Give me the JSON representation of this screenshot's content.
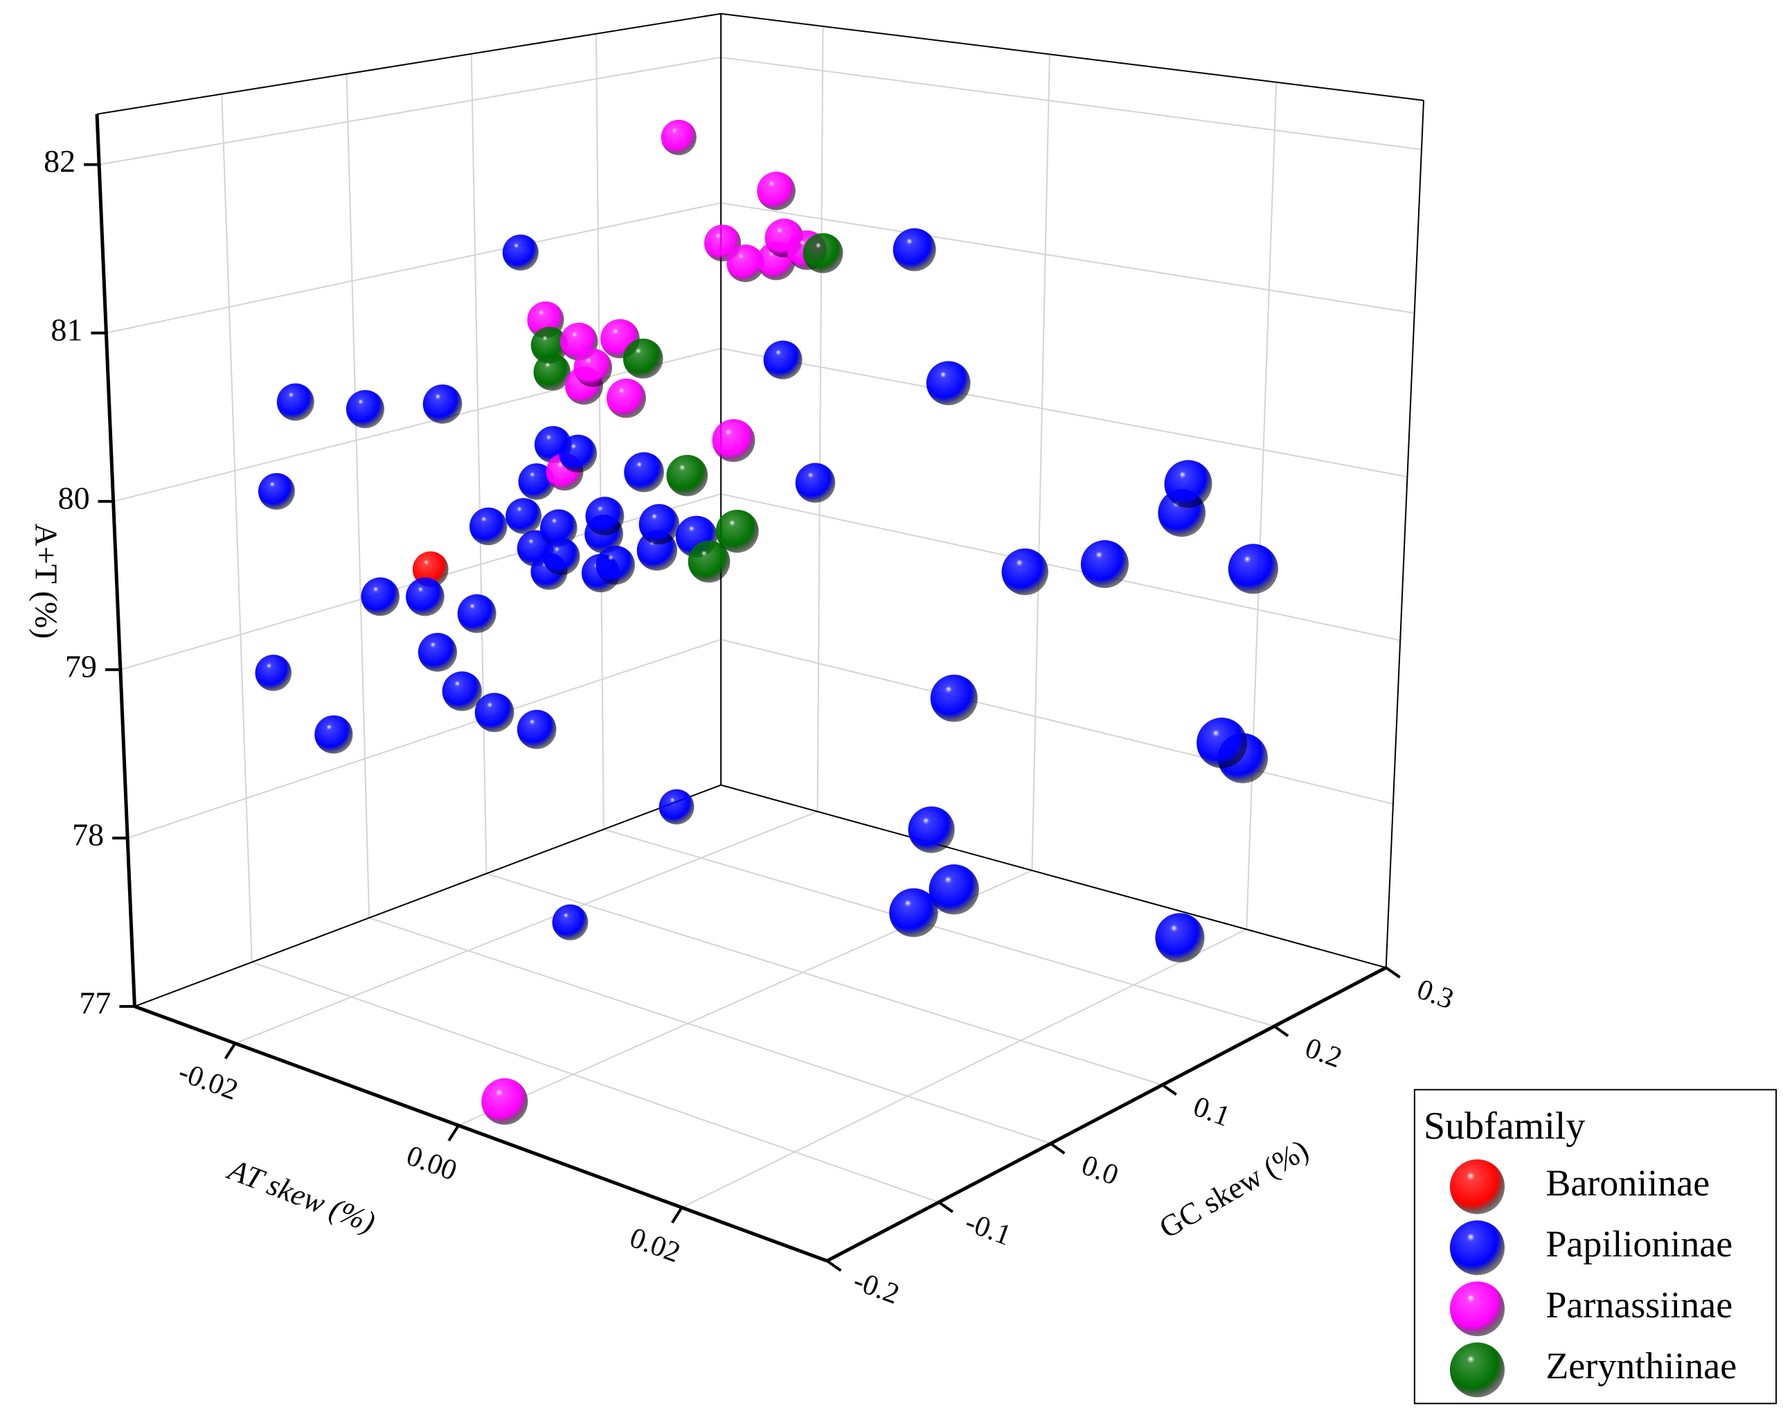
{
  "chart_data": {
    "type": "scatter3d",
    "xlabel": "AT skew (%)",
    "ylabel": "GC skew (%)",
    "zlabel": "A+T (%)",
    "xlim": [
      -0.029,
      0.033
    ],
    "ylim": [
      -0.2,
      0.3
    ],
    "zlim": [
      77,
      82.3
    ],
    "xticks": [
      {
        "value": -0.02,
        "label": "-0.02"
      },
      {
        "value": 0,
        "label": "0.00"
      },
      {
        "value": 0.02,
        "label": "0.02"
      }
    ],
    "yticks": [
      -0.2,
      -0.1,
      {
        "value": 0,
        "label": "0.0"
      },
      0.1,
      0.2,
      0.3
    ],
    "zticks": [
      77,
      78,
      79,
      80,
      81,
      82
    ],
    "grid": true,
    "legend_title": "Subfamily",
    "legend_position": "lower right",
    "series": [
      {
        "name": "Baroniinae",
        "color": "#ff0000",
        "x": [
          -0.0173
        ],
        "y": [
          -0.05
        ],
        "z": [
          79.51
        ]
      },
      {
        "name": "Papilioninae",
        "color": "#0000ff",
        "x": [
          -0.0142,
          0.0096,
          -0.0019,
          0.0127,
          -0.0181,
          -0.0147,
          -0.0106,
          -0.0116,
          -0.0094,
          -0.0131,
          -0.0036,
          0.001,
          -0.02,
          -0.0143,
          -0.0112,
          -0.0121,
          -0.0133,
          -0.0071,
          -0.0072,
          -0.0023,
          0.001,
          -0.0121,
          -0.011,
          -0.0075,
          -0.0062,
          -0.0025,
          0.0263,
          0.0258,
          0.0197,
          0.0242,
          0.0323,
          -0.0138,
          -0.0125,
          -0.0106,
          -0.0115,
          -0.0208,
          -0.0094,
          -0.0092,
          -0.0081,
          -0.0156,
          0.0187,
          -0.0115,
          0.0325,
          0.0324,
          0.0168,
          -0.0133,
          0.024,
          0.0204,
          0.0292
        ],
        "y": [
          0,
          0.1,
          0.1,
          0.1,
          -0.15,
          -0.125,
          -0.1,
          0,
          0,
          0,
          0,
          0.1,
          -0.15,
          0,
          0,
          -0.05,
          0,
          0,
          0,
          0,
          0,
          0,
          0,
          0,
          0,
          0,
          0.175,
          0.175,
          0.1,
          0.125,
          0.175,
          -0.125,
          -0.1,
          -0.075,
          -0.1,
          -0.15,
          -0.1,
          -0.075,
          -0.05,
          -0.15,
          0.05,
          0.1,
          0.15,
          0.17,
          0.05,
          0.025,
          0,
          0,
          0.15
        ],
        "z": [
          81.39,
          81.54,
          80.72,
          80.78,
          80.69,
          80.66,
          80.71,
          80.26,
          80.24,
          80.01,
          80.22,
          80.01,
          80.13,
          79.78,
          79.76,
          79.86,
          79.6,
          79.9,
          79.79,
          79.93,
          79.91,
          79.48,
          79.59,
          79.55,
          79.62,
          79.77,
          80.19,
          80.01,
          79.76,
          79.81,
          79.77,
          79.57,
          79.54,
          79.42,
          79.23,
          79.04,
          79.04,
          78.86,
          78.72,
          78.78,
          79.13,
          77.79,
          78.82,
          78.67,
          78.33,
          77.25,
          78.26,
          78.06,
          77.62
        ]
      },
      {
        "name": "Parnassiinae",
        "color": "#ff00ff",
        "x": [
          -0.011,
          -0.0025,
          -0.0072,
          -0.0018,
          -0.0052,
          -0.0025,
          0.0002,
          -0.0121,
          -0.0092,
          -0.0056,
          -0.008,
          -0.0088,
          -0.0051,
          0.0043,
          -0.0106,
          0.0042
        ],
        "y": [
          0.1,
          0.1,
          0.1,
          0.1,
          0.1,
          0.1,
          0.1,
          0,
          0,
          0,
          0,
          0,
          0,
          0,
          0,
          -0.2
        ],
        "z": [
          81.98,
          81.75,
          81.37,
          81.47,
          81.27,
          81.32,
          81.42,
          81.01,
          80.92,
          80.99,
          80.78,
          80.66,
          80.64,
          80.53,
          80.11,
          77.23
        ]
      },
      {
        "name": "Zerynthiinae",
        "color": "#007000",
        "x": [
          0.0016,
          -0.0118,
          -0.0116,
          -0.0036,
          0.0002,
          0.0046,
          0.0021
        ],
        "y": [
          0.1,
          0,
          0,
          0,
          0,
          0,
          0
        ],
        "z": [
          81.42,
          80.86,
          80.7,
          80.9,
          80.26,
          80,
          79.78
        ]
      }
    ]
  }
}
